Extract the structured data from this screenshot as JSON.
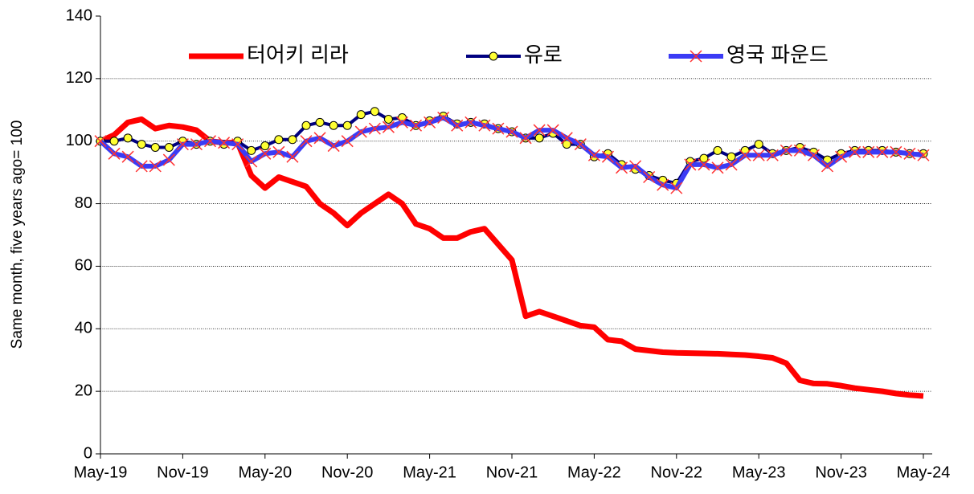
{
  "chart_data": {
    "type": "line",
    "ylabel": "Same month, five years ago= 100",
    "categories": [
      "May-19",
      null,
      null,
      null,
      null,
      null,
      "Nov-19",
      null,
      null,
      null,
      null,
      null,
      "May-20",
      null,
      null,
      null,
      null,
      null,
      "Nov-20",
      null,
      null,
      null,
      null,
      null,
      "May-21",
      null,
      null,
      null,
      null,
      null,
      "Nov-21",
      null,
      null,
      null,
      null,
      null,
      "May-22",
      null,
      null,
      null,
      null,
      null,
      "Nov-22",
      null,
      null,
      null,
      null,
      null,
      "May-23",
      null,
      null,
      null,
      null,
      null,
      "Nov-23",
      null,
      null,
      null,
      null,
      null,
      "May-24"
    ],
    "series": [
      {
        "name": "터어키 리라",
        "color": "#ff0000",
        "marker": "none",
        "values": [
          100,
          102,
          106,
          107,
          104,
          105,
          104.5,
          103.5,
          100,
          99.5,
          99.5,
          89,
          85,
          88.5,
          87,
          85.5,
          80,
          77,
          73,
          77,
          80,
          83,
          80,
          73.5,
          72,
          69,
          69,
          71,
          72,
          67,
          62,
          44,
          45.5,
          44,
          42.5,
          41,
          40.5,
          36.5,
          36,
          33.5,
          33,
          32.5,
          32.3,
          32.2,
          32.1,
          32,
          31.8,
          31.6,
          31.2,
          30.7,
          29,
          23.5,
          22.5,
          22.4,
          21.8,
          21,
          20.5,
          20,
          19.3,
          18.8,
          18.5
        ]
      },
      {
        "name": "유로",
        "color": "#000080",
        "marker": "circle",
        "marker_color": "#ffff33",
        "values": [
          100,
          100,
          101,
          99,
          98,
          98,
          100,
          99,
          100,
          99,
          100,
          97,
          98.5,
          100.5,
          100.5,
          105,
          106,
          105,
          105,
          108.5,
          109.5,
          107,
          107.5,
          105,
          106.5,
          108,
          105.5,
          106,
          105.5,
          104,
          103,
          101,
          101,
          102.5,
          99,
          99,
          95,
          96,
          92.5,
          91,
          89,
          87.5,
          86.5,
          93.5,
          94.5,
          97,
          95,
          97,
          99,
          96,
          97,
          98,
          96.5,
          94,
          96,
          97,
          97,
          97,
          96.5,
          96,
          96
        ]
      },
      {
        "name": "영국 파운드",
        "color": "#3b3bf5",
        "marker": "x",
        "marker_color": "#ff3333",
        "values": [
          100,
          96,
          95,
          92,
          92,
          94,
          99,
          99,
          100,
          99.5,
          99,
          93.5,
          96,
          96.5,
          95,
          100,
          101,
          98.5,
          100,
          103,
          104,
          104.5,
          106,
          105,
          106,
          107.5,
          105,
          106,
          105,
          104,
          103,
          101,
          103.5,
          103.5,
          101,
          99,
          95.5,
          95,
          91.5,
          92,
          88.5,
          86,
          85,
          92.5,
          92.5,
          91.5,
          92.5,
          95.5,
          95.5,
          95.5,
          97,
          97,
          95.5,
          92,
          95,
          96.5,
          96.5,
          96.5,
          96.5,
          96,
          95.5
        ]
      }
    ],
    "ylim": [
      0,
      140
    ],
    "yticks": [
      0,
      20,
      40,
      60,
      80,
      100,
      120,
      140
    ],
    "grid": true,
    "legend": "top"
  }
}
